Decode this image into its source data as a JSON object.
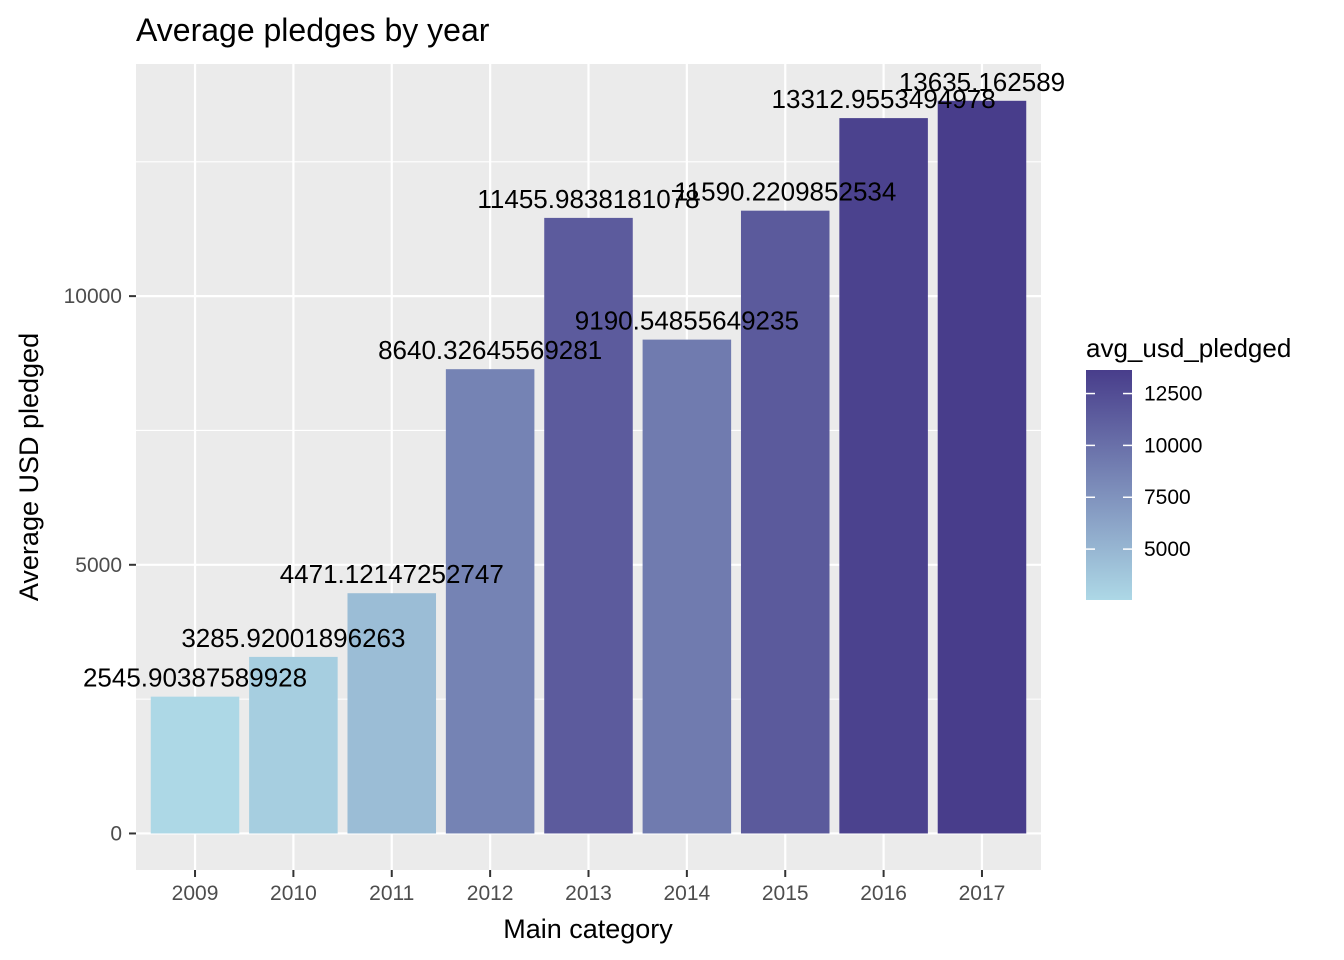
{
  "chart_data": {
    "type": "bar",
    "title": "Average pledges by year",
    "xlabel": "Main category",
    "ylabel": "Average USD pledged",
    "categories": [
      "2009",
      "2010",
      "2011",
      "2012",
      "2013",
      "2014",
      "2015",
      "2016",
      "2017"
    ],
    "values": [
      2545.90387589928,
      3285.92001896263,
      4471.12147252747,
      8640.32645569281,
      11455.9838181078,
      9190.54855649235,
      11590.2209852534,
      13312.9553494978,
      13635.162589
    ],
    "data_labels": [
      "2545.90387589928",
      "3285.92001896263",
      "4471.12147252747",
      "8640.32645569281",
      "11455.9838181078",
      "9190.54855649235",
      "11590.2209852534",
      "13312.9553494978",
      "13635.162589"
    ],
    "y_ticks": [
      0,
      5000,
      10000
    ],
    "ylim": [
      -680,
      14320
    ],
    "grid": true,
    "legend": {
      "title": "avg_usd_pledged",
      "type": "colorbar",
      "position": "right",
      "ticks": [
        5000,
        7500,
        10000,
        12500
      ],
      "range": [
        2545.90387589928,
        13635.162589
      ],
      "color_low": "#add8e6",
      "color_high": "#483d8b"
    },
    "colors": {
      "panel_background": "#ebebeb",
      "grid_line": "#ffffff"
    }
  }
}
